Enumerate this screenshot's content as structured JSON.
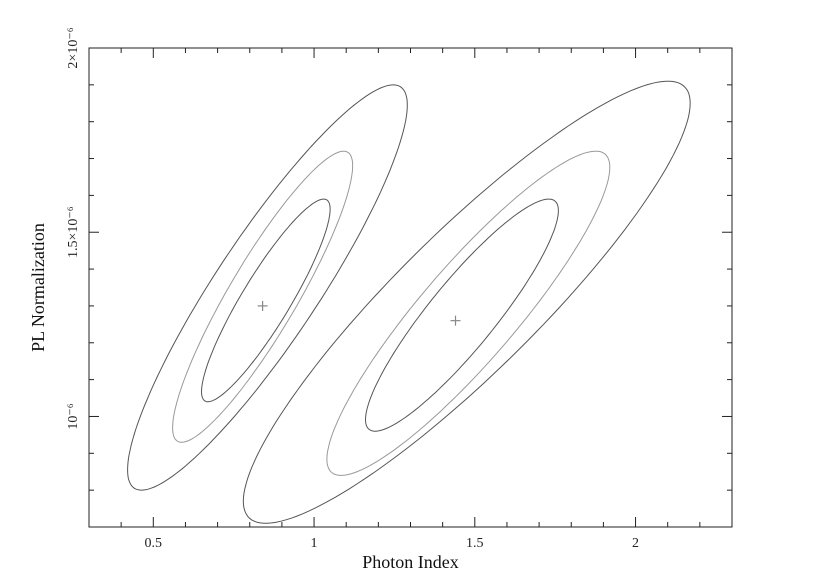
{
  "chart_data": {
    "type": "contour",
    "xlabel": "Photon Index",
    "ylabel": "PL Normalization",
    "xlim": [
      0.3,
      2.3
    ],
    "ylim": [
      7e-07,
      2e-06
    ],
    "x_ticks": [
      {
        "value": 0.5,
        "label": "0.5"
      },
      {
        "value": 1.0,
        "label": "1"
      },
      {
        "value": 1.5,
        "label": "1.5"
      },
      {
        "value": 2.0,
        "label": "2"
      }
    ],
    "y_ticks": [
      {
        "value": 1e-06,
        "label": "10⁻⁶"
      },
      {
        "value": 1.5e-06,
        "label": "1.5×10⁻⁶"
      },
      {
        "value": 2e-06,
        "label": "2×10⁻⁶"
      }
    ],
    "series": [
      {
        "best_fit": {
          "x": 0.84,
          "y": 1.3e-06
        },
        "contours": [
          {
            "level": 1,
            "color": "#555555",
            "x_range": [
              0.65,
              1.05
            ],
            "y_range": [
              1.04e-06,
              1.59e-06
            ]
          },
          {
            "level": 2,
            "color": "#999999",
            "x_range": [
              0.56,
              1.12
            ],
            "y_range": [
              9.3e-07,
              1.72e-06
            ]
          },
          {
            "level": 3,
            "color": "#555555",
            "x_range": [
              0.42,
              1.29
            ],
            "y_range": [
              8e-07,
              1.9e-06
            ]
          }
        ]
      },
      {
        "best_fit": {
          "x": 1.44,
          "y": 1.26e-06
        },
        "contours": [
          {
            "level": 1,
            "color": "#555555",
            "x_range": [
              1.16,
              1.76
            ],
            "y_range": [
              9.6e-07,
              1.59e-06
            ]
          },
          {
            "level": 2,
            "color": "#999999",
            "x_range": [
              1.04,
              1.92
            ],
            "y_range": [
              8.4e-07,
              1.72e-06
            ]
          },
          {
            "level": 3,
            "color": "#555555",
            "x_range": [
              0.78,
              2.17
            ],
            "y_range": [
              7.1e-07,
              1.91e-06
            ]
          }
        ]
      }
    ]
  }
}
